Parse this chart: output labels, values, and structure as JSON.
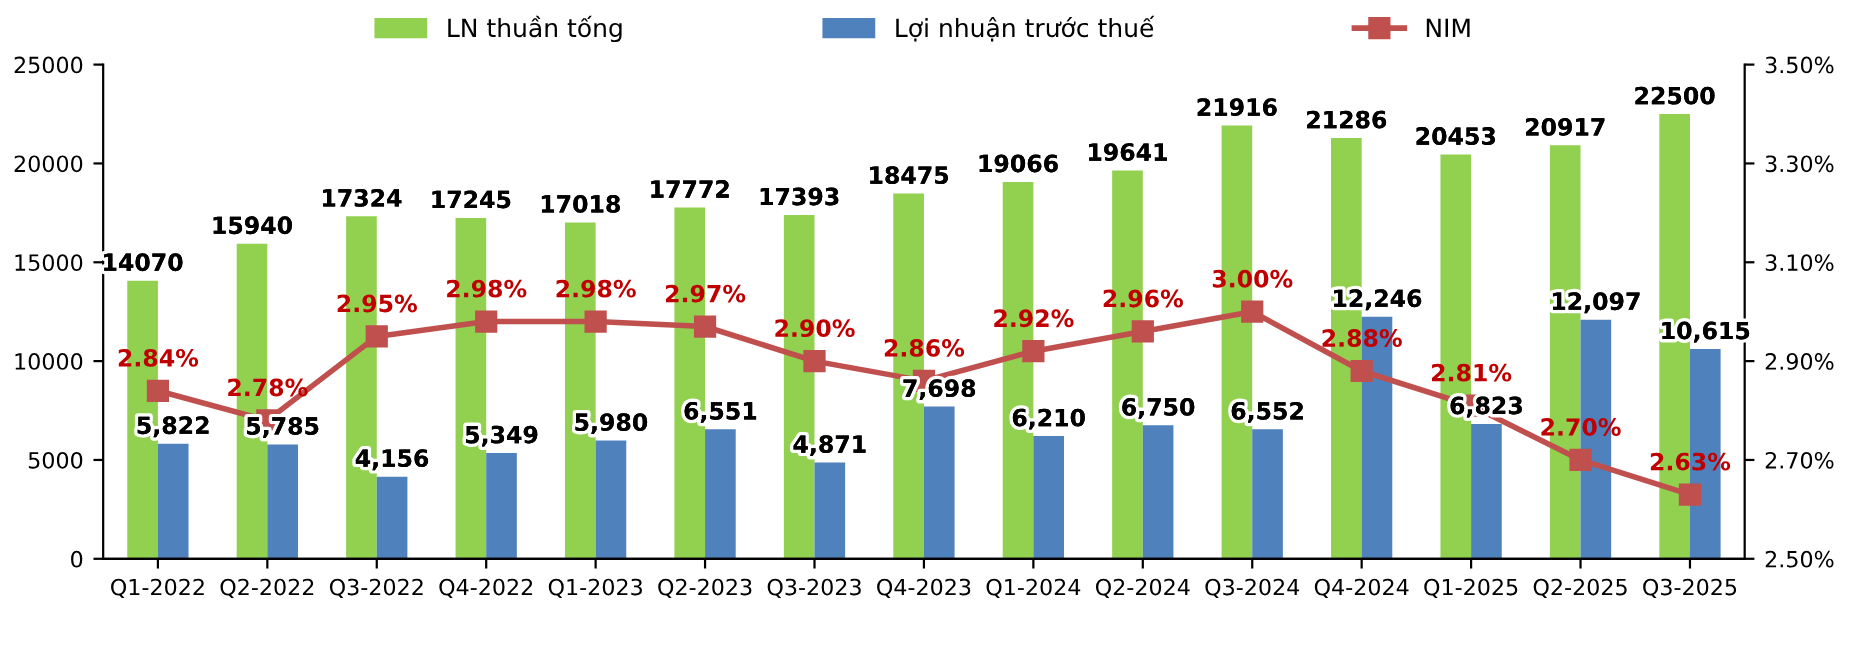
{
  "chart_data": {
    "type": "bar",
    "categories": [
      "Q1-2022",
      "Q2-2022",
      "Q3-2022",
      "Q4-2022",
      "Q1-2023",
      "Q2-2023",
      "Q3-2023",
      "Q4-2023",
      "Q1-2024",
      "Q2-2024",
      "Q3-2024",
      "Q4-2024",
      "Q1-2025",
      "Q2-2025",
      "Q3-2025"
    ],
    "series": [
      {
        "name": "LN thuần tống",
        "color": "#92d050",
        "values": [
          14070,
          15940,
          17324,
          17245,
          17018,
          17772,
          17393,
          18475,
          19066,
          19641,
          21916,
          21286,
          20453,
          20917,
          22500
        ],
        "value_labels": [
          "14070",
          "15940",
          "17324",
          "17245",
          "17018",
          "17772",
          "17393",
          "18475",
          "19066",
          "19641",
          "21916",
          "21286",
          "20453",
          "20917",
          "22500"
        ]
      },
      {
        "name": "Lợi nhuận trước thuế",
        "color": "#4f81bd",
        "values": [
          5822,
          5785,
          4156,
          5349,
          5980,
          6551,
          4871,
          7698,
          6210,
          6750,
          6552,
          12246,
          6823,
          12097,
          10615
        ],
        "value_labels": [
          "5,822",
          "5,785",
          "4,156",
          "5,349",
          "5,980",
          "6,551",
          "4,871",
          "7,698",
          "6,210",
          "6,750",
          "6,552",
          "12,246",
          "6,823",
          "12,097",
          "10,615"
        ]
      },
      {
        "name": "NIM",
        "color": "#c0504d",
        "type": "line",
        "axis": "y2",
        "marker": "square",
        "line_style": "solid",
        "values": [
          2.84,
          2.78,
          2.95,
          2.98,
          2.98,
          2.97,
          2.9,
          2.86,
          2.92,
          2.96,
          3.0,
          2.88,
          2.81,
          2.7,
          2.63
        ],
        "value_labels": [
          "2.84%",
          "2.78%",
          "2.95%",
          "2.98%",
          "2.98%",
          "2.97%",
          "2.90%",
          "2.86%",
          "2.92%",
          "2.96%",
          "3.00%",
          "2.88%",
          "2.81%",
          "2.70%",
          "2.63%"
        ]
      }
    ],
    "ylim": [
      0,
      25000
    ],
    "yticks": [
      0,
      5000,
      10000,
      15000,
      20000,
      25000
    ],
    "y2lim": [
      2.5,
      3.5
    ],
    "y2ticks": [
      {
        "value": 2.5,
        "label": "2.50%"
      },
      {
        "value": 2.7,
        "label": "2.70%"
      },
      {
        "value": 2.9,
        "label": "2.90%"
      },
      {
        "value": 3.1,
        "label": "3.10%"
      },
      {
        "value": 3.3,
        "label": "3.30%"
      },
      {
        "value": 3.5,
        "label": "3.50%"
      }
    ],
    "grid": false,
    "legend": "top"
  }
}
